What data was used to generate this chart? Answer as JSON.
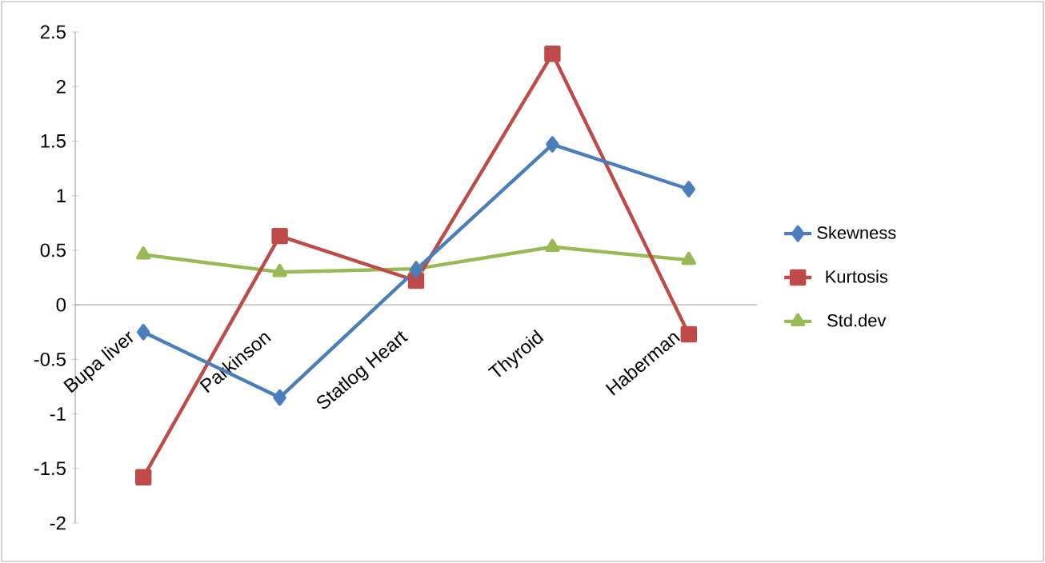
{
  "chart_data": {
    "type": "line",
    "categories": [
      "Bupa liver",
      "Parkinson",
      "Statlog Heart",
      "Thyroid",
      "Haberman"
    ],
    "series": [
      {
        "name": "Skewness",
        "color": "#4a7ebb",
        "marker": "diamond",
        "values": [
          -0.25,
          -0.85,
          0.32,
          1.47,
          1.06
        ]
      },
      {
        "name": "Kurtosis",
        "color": "#be4b48",
        "marker": "square",
        "values": [
          -1.58,
          0.63,
          0.22,
          2.3,
          -0.27
        ]
      },
      {
        "name": "Std.dev",
        "color": "#98b954",
        "marker": "triangle",
        "values": [
          0.46,
          0.3,
          0.33,
          0.53,
          0.41
        ]
      }
    ],
    "ylim": [
      -2,
      2.5
    ],
    "yticks": [
      -2,
      -1.5,
      -1,
      -0.5,
      0,
      0.5,
      1,
      1.5,
      2,
      2.5
    ],
    "legend": "right",
    "grid": false
  }
}
